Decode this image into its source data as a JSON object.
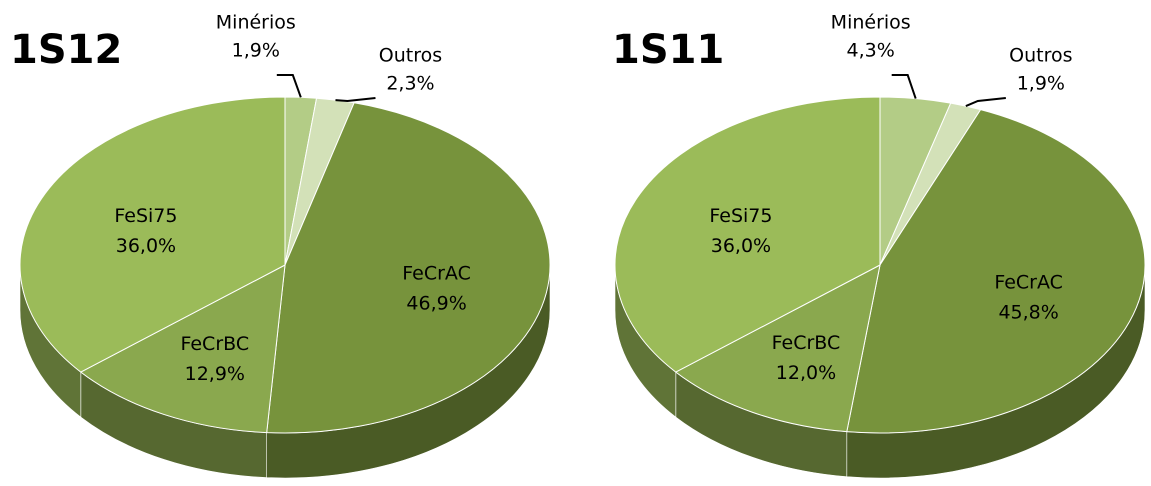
{
  "chart_data": [
    {
      "type": "pie",
      "title": "1S12",
      "categories": [
        "Minérios",
        "Outros",
        "FeCrAC",
        "FeCrBC",
        "FeSi75"
      ],
      "values": [
        1.9,
        2.3,
        46.9,
        12.9,
        36.0
      ],
      "value_labels": [
        "1,9%",
        "2,3%",
        "46,9%",
        "12,9%",
        "36,0%"
      ],
      "colors": [
        "#b3cc86",
        "#d3e1b8",
        "#77933c",
        "#8aa84e",
        "#9bbb59"
      ]
    },
    {
      "type": "pie",
      "title": "1S11",
      "categories": [
        "Minérios",
        "Outros",
        "FeCrAC",
        "FeCrBC",
        "FeSi75"
      ],
      "values": [
        4.3,
        1.9,
        45.8,
        12.0,
        36.0
      ],
      "value_labels": [
        "4,3%",
        "1,9%",
        "45,8%",
        "12,0%",
        "36,0%"
      ],
      "colors": [
        "#b3cc86",
        "#d3e1b8",
        "#77933c",
        "#8aa84e",
        "#9bbb59"
      ]
    }
  ]
}
